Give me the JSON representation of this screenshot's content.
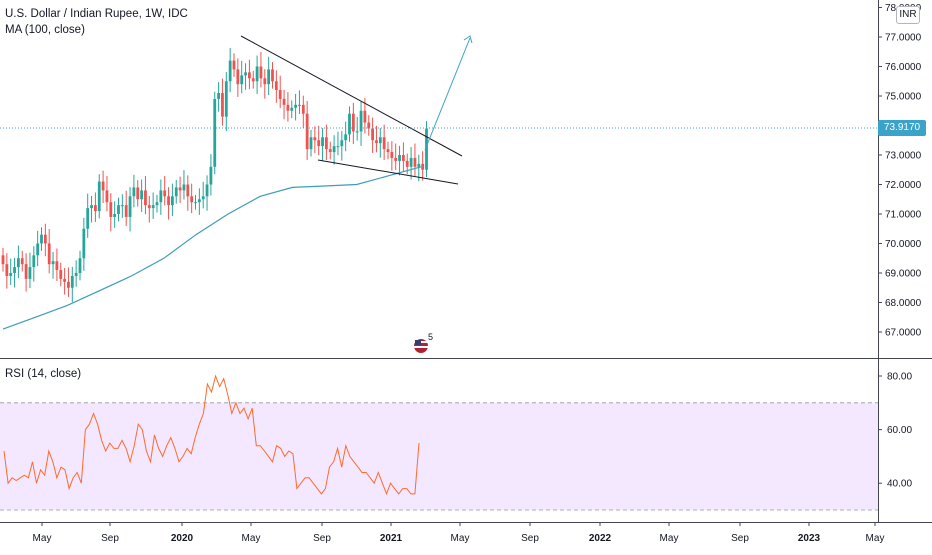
{
  "header": {
    "title": "U.S. Dollar / Indian Rupee, 1W, IDC",
    "ma_label": "MA (100, close)"
  },
  "rsi": {
    "label": "RSI (14, close)"
  },
  "currency_badge": "INR",
  "events_badge": "5",
  "colors": {
    "up": "#26a69a",
    "down": "#ef5350",
    "ma": "#3d9db5",
    "rsi": "#ff6a2b",
    "rsi_band": "#f3e8ff",
    "trendline": "#131722",
    "arrow": "#3aa3c9",
    "price_tag": "#3aa3c9"
  },
  "chart_data": [
    {
      "type": "candlestick",
      "y_ticks": [
        "67.0000",
        "68.0000",
        "69.0000",
        "70.0000",
        "71.0000",
        "72.0000",
        "73.0000",
        "74.0000",
        "75.0000",
        "76.0000",
        "77.0000",
        "78.0000"
      ],
      "x_ticks": [
        "May",
        "Sep",
        "2020",
        "May",
        "Sep",
        "2021",
        "May",
        "Sep",
        "2022",
        "May",
        "Sep",
        "2023",
        "May"
      ],
      "last_price": "73.9170",
      "ylim": [
        66.0,
        78.0
      ],
      "close_series": [
        69.3,
        68.9,
        69.0,
        69.2,
        69.5,
        69.3,
        68.8,
        69.2,
        69.6,
        70.0,
        70.3,
        70.0,
        69.3,
        69.4,
        69.1,
        68.8,
        68.7,
        68.5,
        68.9,
        69.0,
        69.5,
        70.5,
        71.2,
        71.3,
        71.1,
        72.1,
        71.8,
        71.4,
        70.9,
        71.0,
        71.3,
        71.3,
        70.9,
        71.6,
        71.9,
        71.5,
        71.8,
        71.3,
        71.2,
        71.3,
        71.4,
        71.8,
        71.6,
        71.3,
        71.6,
        71.9,
        71.8,
        72.0,
        71.6,
        71.4,
        71.4,
        71.5,
        71.6,
        72.0,
        72.6,
        74.9,
        75.1,
        74.3,
        75.5,
        76.2,
        75.9,
        75.4,
        75.7,
        75.8,
        75.6,
        75.5,
        76.0,
        75.6,
        75.4,
        75.9,
        75.5,
        75.2,
        74.9,
        74.7,
        74.5,
        74.6,
        74.7,
        74.7,
        74.4,
        73.2,
        73.6,
        73.5,
        73.3,
        73.6,
        73.2,
        73.1,
        73.3,
        73.3,
        73.5,
        73.7,
        74.4,
        73.8,
        73.8,
        74.5,
        74.1,
        73.9,
        73.5,
        73.4,
        73.6,
        73.2,
        73.1,
        72.9,
        72.8,
        73.0,
        72.8,
        72.6,
        72.9,
        72.6,
        72.7,
        72.5,
        73.9
      ],
      "ma_series": [
        67.1,
        67.5,
        67.9,
        68.4,
        68.9,
        69.5,
        70.3,
        71.0,
        71.6,
        71.9,
        71.95,
        72.0,
        72.3,
        72.6
      ],
      "annotations": [
        "falling wedge trendlines",
        "breakout arrow"
      ]
    },
    {
      "type": "line",
      "title": "RSI (14, close)",
      "y_ticks": [
        "40.00",
        "60.00",
        "80.00"
      ],
      "ylim": [
        25,
        85
      ],
      "band": [
        30,
        70
      ],
      "values": [
        52,
        40,
        42,
        41,
        42,
        43,
        42,
        48,
        40,
        45,
        43,
        52,
        48,
        42,
        46,
        45,
        38,
        42,
        44,
        40,
        60,
        62,
        66,
        62,
        56,
        52,
        55,
        53,
        53,
        56,
        53,
        48,
        54,
        62,
        60,
        52,
        48,
        58,
        53,
        50,
        54,
        57,
        53,
        48,
        50,
        53,
        51,
        57,
        62,
        66,
        77,
        74,
        80,
        76,
        79,
        73,
        66,
        70,
        66,
        68,
        64,
        68,
        54,
        54,
        52,
        50,
        48,
        54,
        53,
        50,
        52,
        51,
        38,
        40,
        42,
        42,
        40,
        38,
        36,
        38,
        46,
        48,
        53,
        46,
        54,
        50,
        48,
        46,
        44,
        44,
        42,
        40,
        44,
        40,
        36,
        40,
        38,
        36,
        38,
        38,
        36,
        36,
        55
      ]
    }
  ]
}
